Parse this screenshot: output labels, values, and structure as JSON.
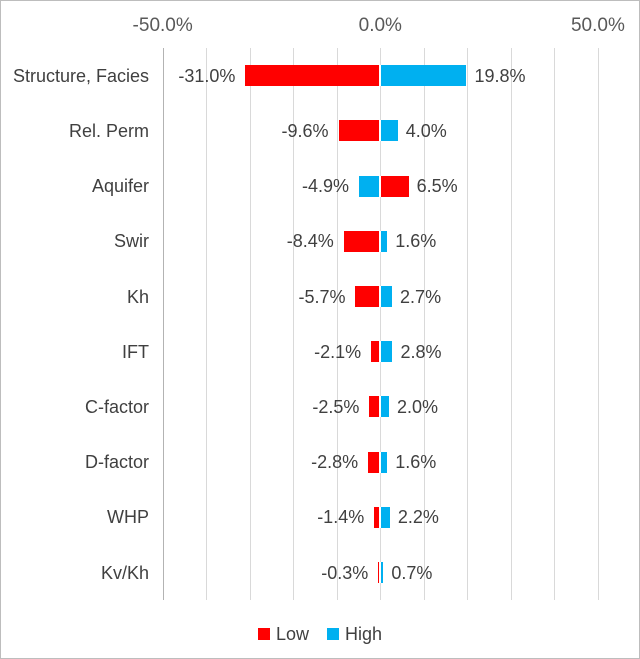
{
  "chart_data": {
    "type": "bar",
    "subtype": "tornado",
    "orientation": "horizontal",
    "title": "",
    "categories": [
      "Structure, Facies",
      "Rel. Perm",
      "Aquifer",
      "Swir",
      "Kh",
      "IFT",
      "C-factor",
      "D-factor",
      "WHP",
      "Kv/Kh"
    ],
    "series": [
      {
        "name": "Low",
        "color": "#FF0000",
        "values": [
          -31.0,
          -9.6,
          6.5,
          -8.4,
          -5.7,
          -2.1,
          -2.5,
          -2.8,
          -1.4,
          -0.3
        ],
        "labels": [
          "-31.0%",
          "-9.6%",
          "6.5%",
          "-8.4%",
          "-5.7%",
          "-2.1%",
          "-2.5%",
          "-2.8%",
          "-1.4%",
          "-0.3%"
        ]
      },
      {
        "name": "High",
        "color": "#00B0F0",
        "values": [
          19.8,
          4.0,
          -4.9,
          1.6,
          2.7,
          2.8,
          2.0,
          1.6,
          2.2,
          0.7
        ],
        "labels": [
          "19.8%",
          "4.0%",
          "-4.9%",
          "1.6%",
          "2.7%",
          "2.8%",
          "2.0%",
          "1.6%",
          "2.2%",
          "0.7%"
        ]
      }
    ],
    "x_axis": {
      "position": "top",
      "range": [
        -50,
        50
      ],
      "ticks": [
        {
          "value": -50,
          "label": "-50.0%"
        },
        {
          "value": 0,
          "label": "0.0%"
        },
        {
          "value": 50,
          "label": "50.0%"
        }
      ],
      "gridline_values": [
        -50,
        -40,
        -30,
        -20,
        -10,
        0,
        10,
        20,
        30,
        40,
        50
      ],
      "grid": true
    },
    "legend": {
      "position": "bottom",
      "entries": [
        "Low",
        "High"
      ]
    },
    "colors": {
      "low": "#FF0000",
      "high": "#00B0F0",
      "gridline": "#D9D9D9",
      "axis_line": "#B3B3B3",
      "text": "#404040"
    }
  }
}
